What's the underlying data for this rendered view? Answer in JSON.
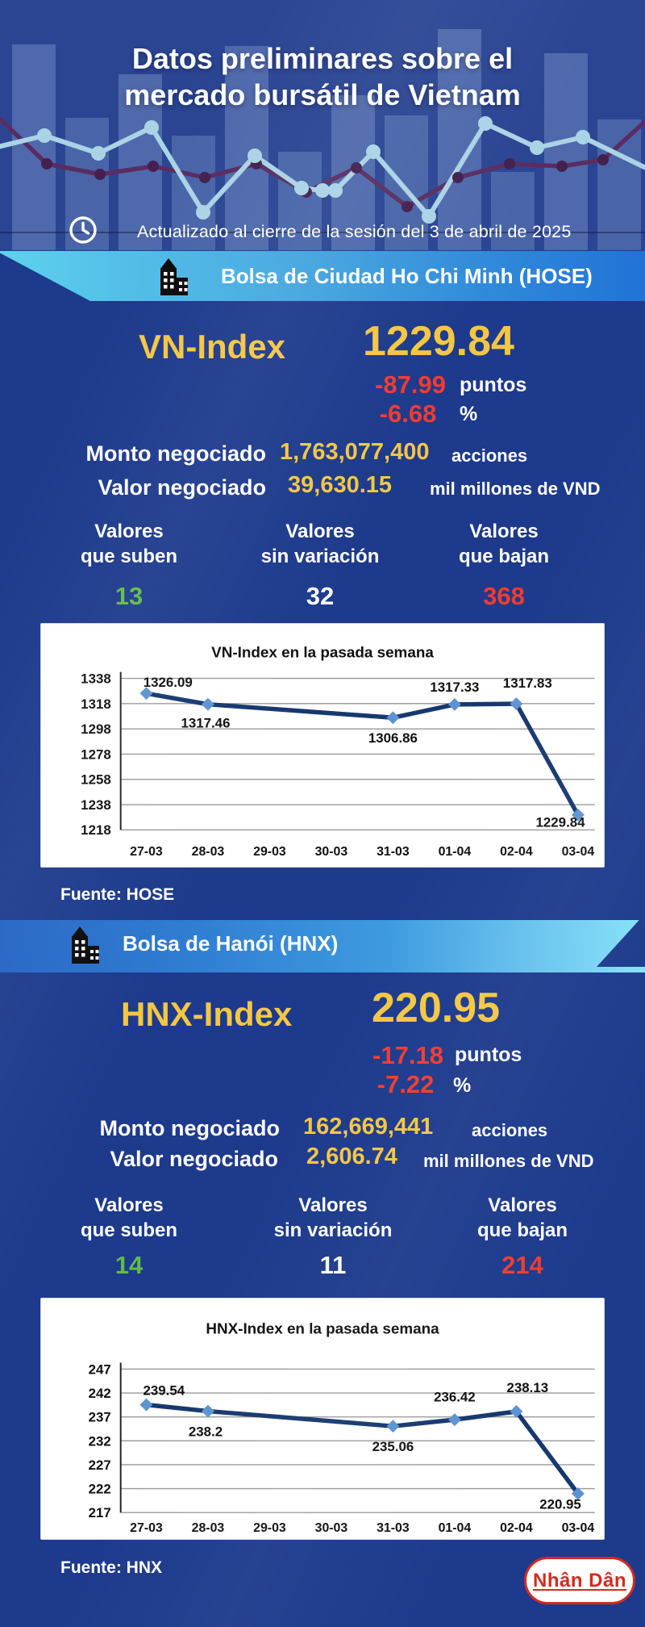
{
  "header": {
    "title_line1": "Datos preliminares sobre el",
    "title_line2": "mercado bursátil de Vietnam",
    "updated": "Actualizado al cierre de la sesión del 3 de abril de 2025"
  },
  "hose": {
    "banner": "Bolsa de Ciudad Ho Chi Minh (HOSE)",
    "index_label": "VN-Index",
    "index_value": "1229.84",
    "points_change": "-87.99",
    "points_unit": "puntos",
    "pct_change": "-6.68",
    "pct_unit": "%",
    "volume_label": "Monto negociado",
    "volume_value": "1,763,077,400",
    "volume_unit": "acciones",
    "turnover_label": "Valor negociado",
    "turnover_value": "39,630.15",
    "turnover_unit": "mil millones de VND",
    "advancers": {
      "line1": "Valores",
      "line2": "que suben",
      "value": "13"
    },
    "unchanged": {
      "line1": "Valores",
      "line2": "sin variación",
      "value": "32"
    },
    "decliners": {
      "line1": "Valores",
      "line2": "que bajan",
      "value": "368"
    },
    "source": "Fuente: HOSE"
  },
  "hnx": {
    "banner": "Bolsa de Hanói (HNX)",
    "index_label": "HNX-Index",
    "index_value": "220.95",
    "points_change": "-17.18",
    "points_unit": "puntos",
    "pct_change": "-7.22",
    "pct_unit": "%",
    "volume_label": "Monto negociado",
    "volume_value": "162,669,441",
    "volume_unit": "acciones",
    "turnover_label": "Valor negociado",
    "turnover_value": "2,606.74",
    "turnover_unit": "mil millones de VND",
    "advancers": {
      "line1": "Valores",
      "line2": "que suben",
      "value": "14"
    },
    "unchanged": {
      "line1": "Valores",
      "line2": "sin variación",
      "value": "11"
    },
    "decliners": {
      "line1": "Valores",
      "line2": "que bajan",
      "value": "214"
    },
    "source": "Fuente: HNX"
  },
  "footer": {
    "brand": "Nhân Dân"
  },
  "icons": {
    "header": "clock-icon",
    "hose_banner": "building-icon",
    "hnx_banner": "building-icon"
  },
  "colors": {
    "accent_yellow": "#F5C642",
    "negative_red": "#F23B2E",
    "positive_green": "#63BA47",
    "navy_bg": "#1D3A8C",
    "header_bg": "#2B4593",
    "banner_cyan": "#5FD1ED",
    "banner_blue": "#2173D6",
    "chart_line": "#17386F",
    "chart_marker": "#5D93D1",
    "logo_red": "#D42A20"
  },
  "chart_data": [
    {
      "type": "line",
      "title": "VN-Index en la pasada semana",
      "categories": [
        "27-03",
        "28-03",
        "29-03",
        "30-03",
        "31-03",
        "01-04",
        "02-04",
        "03-04"
      ],
      "series": [
        {
          "name": "VN-Index",
          "points": [
            {
              "x": "27-03",
              "value": 1326.09,
              "label": "1326.09"
            },
            {
              "x": "28-03",
              "value": 1317.46,
              "label": "1317.46"
            },
            {
              "x": "31-03",
              "value": 1306.86,
              "label": "1306.86"
            },
            {
              "x": "01-04",
              "value": 1317.33,
              "label": "1317.33"
            },
            {
              "x": "02-04",
              "value": 1317.83,
              "label": "1317.83"
            },
            {
              "x": "03-04",
              "value": 1229.84,
              "label": "1229.84"
            }
          ]
        }
      ],
      "xlabel": "",
      "ylabel": "",
      "ylim": [
        1218,
        1338
      ],
      "yticks": [
        1338,
        1318,
        1298,
        1278,
        1258,
        1238,
        1218
      ],
      "grid": true,
      "legend": false,
      "line_color": "#17386F",
      "marker_color": "#5D93D1",
      "label_dx": [
        27,
        -3,
        0,
        0,
        14,
        -22
      ],
      "label_dy": [
        -8,
        29,
        31,
        -16,
        -20,
        15
      ]
    },
    {
      "type": "line",
      "title": "HNX-Index en la pasada semana",
      "categories": [
        "27-03",
        "28-03",
        "29-03",
        "30-03",
        "31-03",
        "01-04",
        "02-04",
        "03-04"
      ],
      "series": [
        {
          "name": "HNX-Index",
          "points": [
            {
              "x": "27-03",
              "value": 239.54,
              "label": "239.54"
            },
            {
              "x": "28-03",
              "value": 238.2,
              "label": "238.2"
            },
            {
              "x": "31-03",
              "value": 235.06,
              "label": "235.06"
            },
            {
              "x": "01-04",
              "value": 236.42,
              "label": "236.42"
            },
            {
              "x": "02-04",
              "value": 238.13,
              "label": "238.13"
            },
            {
              "x": "03-04",
              "value": 220.95,
              "label": "220.95"
            }
          ]
        }
      ],
      "xlabel": "",
      "ylabel": "",
      "ylim": [
        217,
        247
      ],
      "yticks": [
        247,
        242,
        237,
        232,
        227,
        222,
        217
      ],
      "grid": true,
      "legend": false,
      "line_color": "#17386F",
      "marker_color": "#5D93D1",
      "label_dx": [
        22,
        -3,
        0,
        0,
        14,
        -22
      ],
      "label_dy": [
        -12,
        31,
        31,
        -23,
        -24,
        19
      ]
    }
  ]
}
